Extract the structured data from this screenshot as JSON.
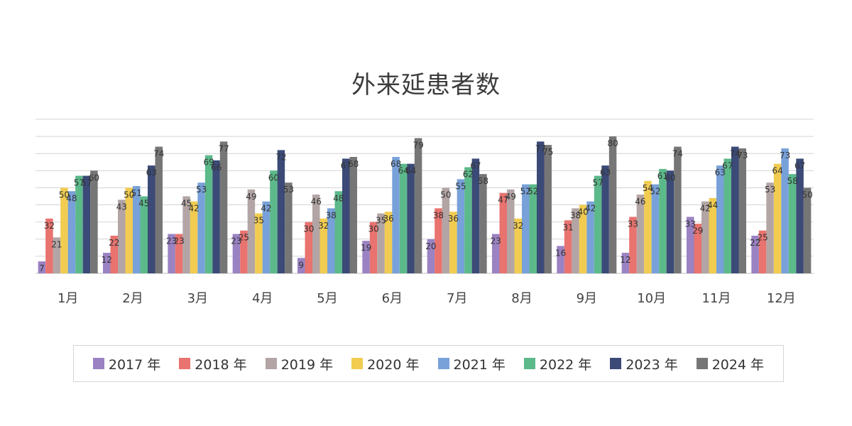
{
  "chart_data": {
    "type": "bar",
    "title": "外来延患者数",
    "categories": [
      "1月",
      "2月",
      "3月",
      "4月",
      "5月",
      "6月",
      "7月",
      "8月",
      "9月",
      "10月",
      "11月",
      "12月"
    ],
    "ylim": [
      0,
      90
    ],
    "grid": true,
    "legend_position": "bottom",
    "series": [
      {
        "name": "2017 年",
        "color": "#9a82c3",
        "values": [
          7,
          12,
          23,
          23,
          9,
          19,
          20,
          23,
          16,
          12,
          33,
          22
        ]
      },
      {
        "name": "2018 年",
        "color": "#e8736f",
        "values": [
          32,
          22,
          23,
          25,
          30,
          30,
          38,
          47,
          31,
          33,
          29,
          25
        ]
      },
      {
        "name": "2019 年",
        "color": "#b3a5a5",
        "values": [
          21,
          43,
          45,
          49,
          46,
          35,
          50,
          49,
          38,
          46,
          42,
          53
        ]
      },
      {
        "name": "2020 年",
        "color": "#f1cc50",
        "values": [
          50,
          50,
          42,
          35,
          32,
          36,
          36,
          32,
          40,
          54,
          44,
          64
        ]
      },
      {
        "name": "2021 年",
        "color": "#78a1d9",
        "values": [
          48,
          51,
          53,
          42,
          38,
          68,
          55,
          52,
          42,
          52,
          63,
          73
        ]
      },
      {
        "name": "2022 年",
        "color": "#5cb98a",
        "values": [
          57,
          45,
          69,
          60,
          48,
          64,
          62,
          52,
          57,
          61,
          67,
          58
        ]
      },
      {
        "name": "2023 年",
        "color": "#3b4a77",
        "values": [
          57,
          63,
          66,
          72,
          67,
          64,
          67,
          77,
          63,
          60,
          74,
          67
        ]
      },
      {
        "name": "2024 年",
        "color": "#767676",
        "values": [
          60,
          74,
          77,
          53,
          68,
          79,
          58,
          75,
          80,
          74,
          73,
          50
        ]
      }
    ]
  }
}
